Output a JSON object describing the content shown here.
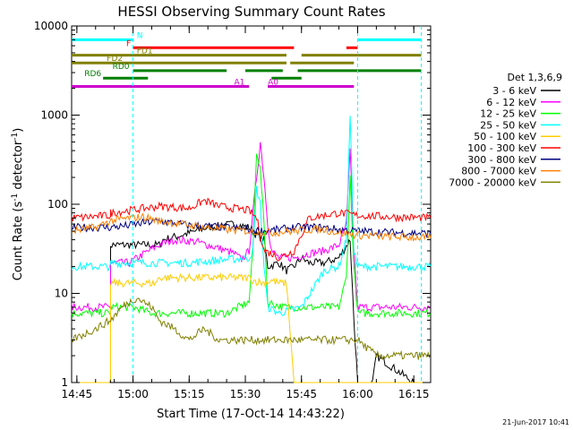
{
  "chart_data": {
    "type": "line",
    "title": "HESSI Observing Summary Count Rates",
    "xlabel": "Start Time (17-Oct-14 14:43:22)",
    "ylabel_main": "Count Rate (s",
    "ylabel_exp": "-1",
    "ylabel_tail": " detector",
    "ylabel_close": ")",
    "yscale": "log",
    "xlim": [
      -1.4,
      94.5
    ],
    "ylim": [
      1,
      10000
    ],
    "x_ticks": [
      {
        "t": 0,
        "label": "14:45"
      },
      {
        "t": 15,
        "label": "15:00"
      },
      {
        "t": 30,
        "label": "15:15"
      },
      {
        "t": 45,
        "label": "15:30"
      },
      {
        "t": 60,
        "label": "15:45"
      },
      {
        "t": 75,
        "label": "16:00"
      },
      {
        "t": 90,
        "label": "16:15"
      }
    ],
    "y_ticks": [
      {
        "v": 1,
        "label": "1"
      },
      {
        "v": 10,
        "label": "10"
      },
      {
        "v": 100,
        "label": "100"
      },
      {
        "v": 1000,
        "label": "1000"
      },
      {
        "v": 10000,
        "label": "10000"
      }
    ],
    "legend_title": "Det 1,3,6,9",
    "legend_position": "right",
    "date_stamp": "21-Jun-2017 10:41",
    "series": [
      {
        "name": "3 - 6 keV",
        "color": "#000000",
        "points": [
          [
            -1.4,
            1
          ],
          [
            9,
            1
          ],
          [
            9,
            35
          ],
          [
            22,
            35
          ],
          [
            23,
            40
          ],
          [
            28,
            45
          ],
          [
            35,
            55
          ],
          [
            42,
            60
          ],
          [
            46,
            55
          ],
          [
            48,
            45
          ],
          [
            50,
            40
          ],
          [
            51,
            20
          ],
          [
            54,
            22
          ],
          [
            56,
            18
          ],
          [
            58,
            20
          ],
          [
            60,
            25
          ],
          [
            62,
            22
          ],
          [
            66,
            22
          ],
          [
            70,
            25
          ],
          [
            73,
            40
          ],
          [
            74,
            5
          ],
          [
            75,
            1
          ],
          [
            79,
            1
          ],
          [
            80,
            2
          ],
          [
            90,
            1
          ],
          [
            94.5,
            1
          ]
        ]
      },
      {
        "name": "6 - 12 keV",
        "color": "#ff00ff",
        "points": [
          [
            -1.4,
            7
          ],
          [
            9,
            7
          ],
          [
            9,
            22
          ],
          [
            14,
            22
          ],
          [
            18,
            28
          ],
          [
            22,
            35
          ],
          [
            26,
            40
          ],
          [
            32,
            38
          ],
          [
            38,
            32
          ],
          [
            42,
            28
          ],
          [
            44,
            24
          ],
          [
            46,
            30
          ],
          [
            48,
            200
          ],
          [
            49,
            500
          ],
          [
            50,
            200
          ],
          [
            51,
            60
          ],
          [
            52,
            30
          ],
          [
            54,
            25
          ],
          [
            58,
            25
          ],
          [
            62,
            28
          ],
          [
            66,
            30
          ],
          [
            70,
            35
          ],
          [
            72,
            60
          ],
          [
            73,
            400
          ],
          [
            74,
            30
          ],
          [
            75,
            7
          ],
          [
            94.5,
            7
          ]
        ]
      },
      {
        "name": "12 - 25 keV",
        "color": "#00ff00",
        "points": [
          [
            -1.4,
            6
          ],
          [
            9,
            6
          ],
          [
            9,
            7
          ],
          [
            15,
            7
          ],
          [
            20,
            6
          ],
          [
            30,
            6
          ],
          [
            40,
            6
          ],
          [
            46,
            8
          ],
          [
            47,
            30
          ],
          [
            48,
            400
          ],
          [
            49,
            250
          ],
          [
            50,
            60
          ],
          [
            51,
            8
          ],
          [
            55,
            7
          ],
          [
            70,
            7
          ],
          [
            72,
            15
          ],
          [
            73,
            200
          ],
          [
            74,
            20
          ],
          [
            75,
            6
          ],
          [
            94.5,
            6
          ]
        ]
      },
      {
        "name": "25 - 50 keV",
        "color": "#00ffff",
        "points": [
          [
            -1.4,
            20
          ],
          [
            9,
            20
          ],
          [
            9,
            22
          ],
          [
            20,
            22
          ],
          [
            30,
            22
          ],
          [
            40,
            24
          ],
          [
            46,
            25
          ],
          [
            47,
            30
          ],
          [
            48,
            150
          ],
          [
            49,
            100
          ],
          [
            50,
            20
          ],
          [
            51,
            7
          ],
          [
            54,
            6
          ],
          [
            60,
            7
          ],
          [
            66,
            18
          ],
          [
            70,
            20
          ],
          [
            72,
            40
          ],
          [
            73,
            1000
          ],
          [
            74,
            30
          ],
          [
            75,
            20
          ],
          [
            94.5,
            20
          ]
        ]
      },
      {
        "name": "50 - 100 keV",
        "color": "#ffcc00",
        "points": [
          [
            -1.4,
            1
          ],
          [
            9,
            1
          ],
          [
            9,
            13
          ],
          [
            21,
            13
          ],
          [
            22,
            15
          ],
          [
            46,
            15
          ],
          [
            47,
            14
          ],
          [
            50,
            13
          ],
          [
            52,
            14
          ],
          [
            54,
            13
          ],
          [
            56,
            13
          ],
          [
            58,
            1
          ],
          [
            94.5,
            1
          ]
        ]
      },
      {
        "name": "100 - 300 keV",
        "color": "#ff0000",
        "points": [
          [
            -1.4,
            70
          ],
          [
            9,
            75
          ],
          [
            9,
            80
          ],
          [
            14,
            85
          ],
          [
            18,
            90
          ],
          [
            22,
            95
          ],
          [
            30,
            90
          ],
          [
            34,
            110
          ],
          [
            38,
            95
          ],
          [
            42,
            90
          ],
          [
            46,
            85
          ],
          [
            48,
            70
          ],
          [
            50,
            30
          ],
          [
            52,
            28
          ],
          [
            54,
            25
          ],
          [
            58,
            30
          ],
          [
            62,
            70
          ],
          [
            66,
            75
          ],
          [
            70,
            80
          ],
          [
            75,
            75
          ],
          [
            85,
            72
          ],
          [
            94.5,
            70
          ]
        ]
      },
      {
        "name": "300 - 800 keV",
        "color": "#000080",
        "points": [
          [
            -1.4,
            55
          ],
          [
            9,
            55
          ],
          [
            14,
            58
          ],
          [
            18,
            62
          ],
          [
            22,
            65
          ],
          [
            30,
            58
          ],
          [
            40,
            55
          ],
          [
            46,
            52
          ],
          [
            50,
            50
          ],
          [
            54,
            52
          ],
          [
            58,
            55
          ],
          [
            62,
            55
          ],
          [
            66,
            55
          ],
          [
            70,
            52
          ],
          [
            75,
            50
          ],
          [
            85,
            48
          ],
          [
            94.5,
            47
          ]
        ]
      },
      {
        "name": "800 - 7000 keV",
        "color": "#ff8000",
        "points": [
          [
            -1.4,
            50
          ],
          [
            5,
            55
          ],
          [
            9,
            65
          ],
          [
            14,
            70
          ],
          [
            18,
            72
          ],
          [
            22,
            65
          ],
          [
            28,
            60
          ],
          [
            34,
            55
          ],
          [
            40,
            52
          ],
          [
            46,
            50
          ],
          [
            52,
            48
          ],
          [
            58,
            50
          ],
          [
            62,
            52
          ],
          [
            66,
            52
          ],
          [
            70,
            48
          ],
          [
            75,
            45
          ],
          [
            85,
            43
          ],
          [
            94.5,
            42
          ]
        ]
      },
      {
        "name": "7000 - 20000 keV",
        "color": "#808000",
        "points": [
          [
            -1.4,
            3
          ],
          [
            5,
            4
          ],
          [
            9,
            5
          ],
          [
            12,
            7
          ],
          [
            16,
            9
          ],
          [
            20,
            7
          ],
          [
            22,
            5
          ],
          [
            26,
            4
          ],
          [
            30,
            3
          ],
          [
            34,
            4
          ],
          [
            38,
            3
          ],
          [
            42,
            3
          ],
          [
            46,
            3
          ],
          [
            50,
            3
          ],
          [
            54,
            3
          ],
          [
            58,
            3
          ],
          [
            62,
            3
          ],
          [
            66,
            3
          ],
          [
            70,
            3
          ],
          [
            75,
            3
          ],
          [
            80,
            2
          ],
          [
            85,
            2
          ],
          [
            94.5,
            2
          ]
        ]
      }
    ],
    "flag_bars": [
      {
        "label": "N",
        "color": "#00ffff",
        "v": 7000,
        "label_t": 16,
        "segments": [
          [
            -1.4,
            15
          ],
          [
            75,
            92
          ]
        ]
      },
      {
        "label": "F",
        "color": "#ff0000",
        "v": 5700,
        "label_t": 13.2,
        "segments": [
          [
            15,
            58
          ],
          [
            72,
            75
          ]
        ]
      },
      {
        "label": "FD1",
        "color": "#808000",
        "v": 4700,
        "label_t": 16,
        "segments": [
          [
            -1.4,
            56
          ],
          [
            60,
            92
          ]
        ]
      },
      {
        "label": "FD2",
        "color": "#808000",
        "v": 3850,
        "label_t": 8,
        "segments": [
          [
            -1.4,
            56
          ],
          [
            57,
            74
          ]
        ]
      },
      {
        "label": "RD0",
        "color": "#008000",
        "v": 3150,
        "label_t": 9.5,
        "segments": [
          [
            15,
            40
          ],
          [
            45,
            55
          ],
          [
            59,
            92
          ]
        ]
      },
      {
        "label": "RD6",
        "color": "#008000",
        "v": 2600,
        "label_t": 2,
        "segments": [
          [
            7,
            19
          ],
          [
            52,
            60
          ]
        ]
      },
      {
        "label": "A1",
        "color": "#cc00cc",
        "v": 2100,
        "label_t": 42,
        "segments": [
          [
            -1.4,
            46
          ],
          [
            51,
            74
          ]
        ]
      },
      {
        "label": "A0",
        "color": "#cc00cc",
        "v": 2100,
        "label_t": 51,
        "segments": []
      }
    ]
  }
}
